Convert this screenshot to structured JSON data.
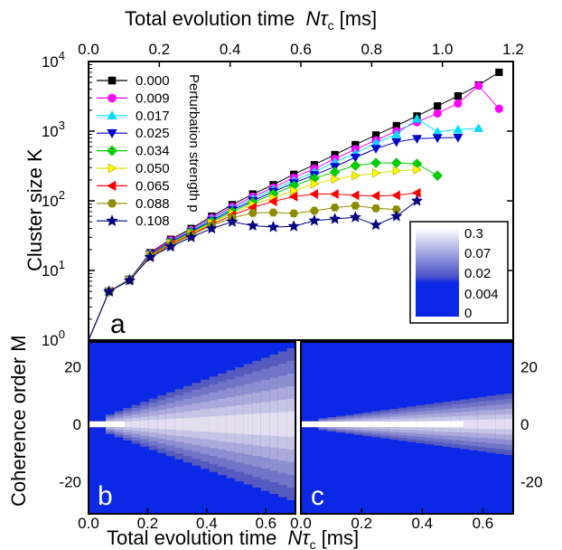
{
  "chart_data": [
    {
      "panel": "a",
      "type": "line",
      "xlabel_top": "Total evolution time",
      "xlabel_top_symbol": "Nτ",
      "xlabel_top_sub": "c",
      "xlabel_top_unit": "[ms]",
      "ylabel": "Cluster size K",
      "xlim": [
        0.0,
        1.2
      ],
      "ylim": [
        1,
        10000
      ],
      "yscale": "log",
      "xticks": [
        "0.0",
        "0.2",
        "0.4",
        "0.6",
        "0.8",
        "1.0",
        "1.2"
      ],
      "yticks": [
        {
          "base": "10",
          "exp": "0"
        },
        {
          "base": "10",
          "exp": "1"
        },
        {
          "base": "10",
          "exp": "2"
        },
        {
          "base": "10",
          "exp": "3"
        },
        {
          "base": "10",
          "exp": "4"
        }
      ],
      "legend_title": "Perturbation strength p",
      "legend_position": "top-left",
      "series": [
        {
          "name": "0.000",
          "color": "#000000",
          "marker": "square",
          "x": [
            0.0,
            0.058,
            0.116,
            0.174,
            0.232,
            0.29,
            0.348,
            0.406,
            0.464,
            0.522,
            0.58,
            0.638,
            0.696,
            0.754,
            0.812,
            0.87,
            0.928,
            0.986,
            1.044,
            1.102,
            1.16
          ],
          "y": [
            1,
            5,
            7.5,
            18,
            28,
            40,
            60,
            88,
            125,
            170,
            240,
            330,
            460,
            640,
            880,
            1200,
            1650,
            2300,
            3200,
            4600,
            7000
          ]
        },
        {
          "name": "0.009",
          "color": "#ff00ff",
          "marker": "circle",
          "x": [
            0.0,
            0.058,
            0.116,
            0.174,
            0.232,
            0.29,
            0.348,
            0.406,
            0.464,
            0.522,
            0.58,
            0.638,
            0.696,
            0.754,
            0.812,
            0.87,
            0.928,
            0.986,
            1.044,
            1.102,
            1.16
          ],
          "y": [
            1,
            5,
            7.5,
            17.5,
            27,
            38,
            57,
            82,
            115,
            155,
            215,
            290,
            400,
            550,
            740,
            1000,
            1350,
            1800,
            2500,
            4500,
            2100
          ]
        },
        {
          "name": "0.017",
          "color": "#00dcff",
          "marker": "triangle-up",
          "x": [
            0.0,
            0.058,
            0.116,
            0.174,
            0.232,
            0.29,
            0.348,
            0.406,
            0.464,
            0.522,
            0.58,
            0.638,
            0.696,
            0.754,
            0.812,
            0.87,
            0.928,
            0.986,
            1.044,
            1.102
          ],
          "y": [
            1,
            5,
            7.5,
            17,
            26,
            37,
            55,
            78,
            108,
            145,
            195,
            260,
            360,
            480,
            680,
            900,
            1500,
            980,
            1050,
            1100
          ]
        },
        {
          "name": "0.025",
          "color": "#0000cc",
          "marker": "triangle-down",
          "x": [
            0.0,
            0.058,
            0.116,
            0.174,
            0.232,
            0.29,
            0.348,
            0.406,
            0.464,
            0.522,
            0.58,
            0.638,
            0.696,
            0.754,
            0.812,
            0.87,
            0.928,
            0.986,
            1.044
          ],
          "y": [
            1,
            5,
            7.4,
            17,
            25.5,
            36,
            52,
            74,
            100,
            135,
            180,
            235,
            310,
            420,
            560,
            700,
            780,
            800,
            810
          ]
        },
        {
          "name": "0.034",
          "color": "#00cc00",
          "marker": "diamond",
          "x": [
            0.0,
            0.058,
            0.116,
            0.174,
            0.232,
            0.29,
            0.348,
            0.406,
            0.464,
            0.522,
            0.58,
            0.638,
            0.696,
            0.754,
            0.812,
            0.87,
            0.928,
            0.986
          ],
          "y": [
            1,
            5,
            7.4,
            16.5,
            25,
            35,
            50,
            70,
            95,
            125,
            165,
            210,
            260,
            320,
            350,
            350,
            340,
            230
          ]
        },
        {
          "name": "0.050",
          "color": "#ffff00",
          "marker": "triangle-right",
          "x": [
            0.0,
            0.058,
            0.116,
            0.174,
            0.232,
            0.29,
            0.348,
            0.406,
            0.464,
            0.522,
            0.58,
            0.638,
            0.696,
            0.754,
            0.812,
            0.87,
            0.928
          ],
          "y": [
            1,
            5,
            7.3,
            16.5,
            24.5,
            34,
            48,
            66,
            88,
            110,
            140,
            175,
            205,
            230,
            250,
            270,
            280
          ]
        },
        {
          "name": "0.065",
          "color": "#ff0000",
          "marker": "triangle-left",
          "x": [
            0.0,
            0.058,
            0.116,
            0.174,
            0.232,
            0.29,
            0.348,
            0.406,
            0.464,
            0.522,
            0.58,
            0.638,
            0.696,
            0.754,
            0.812,
            0.87,
            0.928
          ],
          "y": [
            1,
            5,
            7.3,
            16,
            24,
            33,
            46,
            62,
            80,
            98,
            115,
            125,
            125,
            120,
            118,
            120,
            130
          ]
        },
        {
          "name": "0.088",
          "color": "#8c8c00",
          "marker": "hexagon",
          "x": [
            0.0,
            0.058,
            0.116,
            0.174,
            0.232,
            0.29,
            0.348,
            0.406,
            0.464,
            0.522,
            0.58,
            0.638,
            0.696,
            0.754,
            0.812,
            0.87
          ],
          "y": [
            1,
            5,
            7.2,
            16,
            23,
            32,
            44,
            57,
            67,
            68,
            66,
            72,
            80,
            85,
            78,
            75
          ]
        },
        {
          "name": "0.108",
          "color": "#000080",
          "marker": "star",
          "x": [
            0.0,
            0.058,
            0.116,
            0.174,
            0.232,
            0.29,
            0.348,
            0.406,
            0.464,
            0.522,
            0.58,
            0.638,
            0.696,
            0.754,
            0.812,
            0.87,
            0.928
          ],
          "y": [
            1,
            5,
            7.2,
            15.5,
            22,
            30,
            40,
            50,
            44,
            42,
            43,
            52,
            55,
            58,
            45,
            60,
            100
          ]
        }
      ],
      "colorbar": {
        "labels": [
          "0.3",
          "0.07",
          "0.02",
          "0.004",
          "0"
        ]
      }
    },
    {
      "panel": "b",
      "type": "heatmap",
      "ylabel": "Coherence order M",
      "xlim": [
        0.0,
        0.7
      ],
      "ylim": [
        -30,
        30
      ],
      "xticks": [
        "0.0",
        "0.2",
        "0.4",
        "0.6"
      ],
      "yticks": [
        "20",
        "0",
        "-20"
      ],
      "description_free": true
    },
    {
      "panel": "c",
      "type": "heatmap",
      "xlabel": "Total evolution time",
      "xlabel_symbol": "Nτ",
      "xlabel_sub": "c",
      "xlabel_unit": "[ms]",
      "xlim": [
        0.0,
        0.7
      ],
      "ylim": [
        -30,
        30
      ],
      "xticks": [
        "0.0",
        "0.2",
        "0.4",
        "0.6"
      ],
      "yticks": [
        "20",
        "0",
        "-20"
      ]
    }
  ],
  "colors": {
    "heatmap_background": "#0a28e6",
    "heatmap_peak": "#ffffff",
    "heatmap_mid": "#9a9ed0"
  }
}
